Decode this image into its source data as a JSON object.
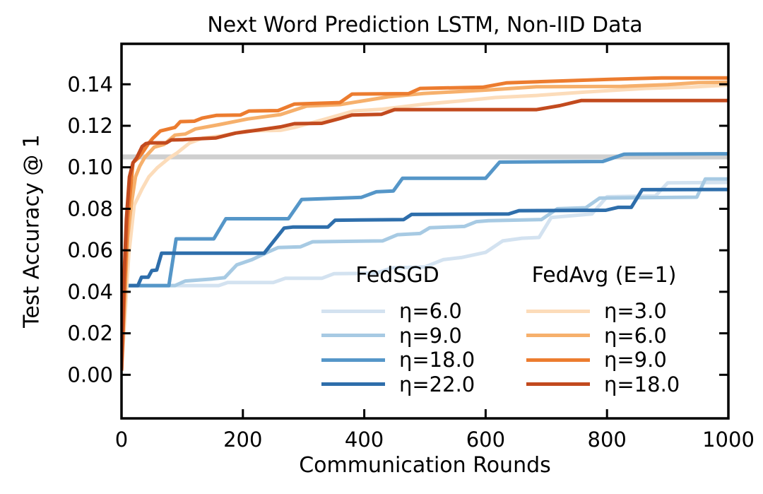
{
  "chart_data": {
    "type": "line",
    "title": "Next Word Prediction LSTM, Non-IID Data",
    "xlabel": "Communication Rounds",
    "ylabel": "Test Accuracy @ 1",
    "xlim": [
      0,
      1000
    ],
    "ylim": [
      -0.021,
      0.1595
    ],
    "grid": false,
    "xticks": [
      {
        "value": 0,
        "label": "0"
      },
      {
        "value": 200,
        "label": "200"
      },
      {
        "value": 400,
        "label": "400"
      },
      {
        "value": 600,
        "label": "600"
      },
      {
        "value": 800,
        "label": "800"
      },
      {
        "value": 1000,
        "label": "1000"
      }
    ],
    "yticks": [
      {
        "value": 0.0,
        "label": "0.00"
      },
      {
        "value": 0.02,
        "label": "0.02"
      },
      {
        "value": 0.04,
        "label": "0.04"
      },
      {
        "value": 0.06,
        "label": "0.06"
      },
      {
        "value": 0.08,
        "label": "0.08"
      },
      {
        "value": 0.1,
        "label": "0.10"
      },
      {
        "value": 0.12,
        "label": "0.12"
      },
      {
        "value": 0.14,
        "label": "0.14"
      }
    ],
    "target_line": {
      "value": 0.105,
      "color": "#cfcfcf"
    },
    "groups": [
      {
        "title": "FedSGD",
        "series": [
          {
            "label": "η=6.0",
            "color": "#d3e2f0",
            "points": [
              [
                0,
                0.043
              ],
              [
                160,
                0.043
              ],
              [
                175,
                0.0445
              ],
              [
                250,
                0.0445
              ],
              [
                270,
                0.0465
              ],
              [
                330,
                0.0465
              ],
              [
                350,
                0.0487
              ],
              [
                420,
                0.049
              ],
              [
                445,
                0.0515
              ],
              [
                500,
                0.052
              ],
              [
                530,
                0.0555
              ],
              [
                560,
                0.0565
              ],
              [
                600,
                0.059
              ],
              [
                628,
                0.0645
              ],
              [
                660,
                0.0658
              ],
              [
                688,
                0.0662
              ],
              [
                708,
                0.0758
              ],
              [
                775,
                0.0775
              ],
              [
                800,
                0.0858
              ],
              [
                880,
                0.0862
              ],
              [
                900,
                0.0925
              ],
              [
                1000,
                0.0927
              ]
            ]
          },
          {
            "label": "η=9.0",
            "color": "#a7cae3",
            "points": [
              [
                0,
                0.043
              ],
              [
                88,
                0.043
              ],
              [
                105,
                0.0452
              ],
              [
                150,
                0.0462
              ],
              [
                170,
                0.0468
              ],
              [
                190,
                0.053
              ],
              [
                215,
                0.0555
              ],
              [
                240,
                0.059
              ],
              [
                258,
                0.0613
              ],
              [
                295,
                0.0617
              ],
              [
                315,
                0.0641
              ],
              [
                430,
                0.0645
              ],
              [
                455,
                0.0675
              ],
              [
                492,
                0.0681
              ],
              [
                508,
                0.0709
              ],
              [
                565,
                0.0715
              ],
              [
                585,
                0.0738
              ],
              [
                605,
                0.0743
              ],
              [
                692,
                0.0748
              ],
              [
                718,
                0.08
              ],
              [
                765,
                0.0805
              ],
              [
                788,
                0.0852
              ],
              [
                948,
                0.0856
              ],
              [
                962,
                0.0944
              ],
              [
                1000,
                0.0944
              ]
            ]
          },
          {
            "label": "η=18.0",
            "color": "#5596c8",
            "points": [
              [
                0,
                0.043
              ],
              [
                78,
                0.043
              ],
              [
                90,
                0.0655
              ],
              [
                152,
                0.0655
              ],
              [
                172,
                0.0752
              ],
              [
                275,
                0.0752
              ],
              [
                297,
                0.0845
              ],
              [
                330,
                0.0848
              ],
              [
                395,
                0.0855
              ],
              [
                420,
                0.0882
              ],
              [
                448,
                0.0886
              ],
              [
                463,
                0.0947
              ],
              [
                600,
                0.0947
              ],
              [
                623,
                0.1025
              ],
              [
                793,
                0.1028
              ],
              [
                828,
                0.1063
              ],
              [
                1000,
                0.1065
              ]
            ]
          },
          {
            "label": "η=22.0",
            "color": "#2e6eab",
            "points": [
              [
                0,
                0.043
              ],
              [
                27,
                0.043
              ],
              [
                33,
                0.047
              ],
              [
                44,
                0.047
              ],
              [
                50,
                0.0502
              ],
              [
                58,
                0.0505
              ],
              [
                66,
                0.0586
              ],
              [
                235,
                0.0586
              ],
              [
                268,
                0.0707
              ],
              [
                282,
                0.0712
              ],
              [
                340,
                0.0712
              ],
              [
                352,
                0.0745
              ],
              [
                465,
                0.0748
              ],
              [
                478,
                0.0773
              ],
              [
                638,
                0.0775
              ],
              [
                655,
                0.0791
              ],
              [
                798,
                0.0793
              ],
              [
                818,
                0.0807
              ],
              [
                840,
                0.0807
              ],
              [
                858,
                0.0892
              ],
              [
                1000,
                0.0893
              ]
            ]
          }
        ]
      },
      {
        "title": "FedAvg (E=1)",
        "series": [
          {
            "label": "η=3.0",
            "color": "#fcdcba",
            "points": [
              [
                0,
                0.002
              ],
              [
                6,
                0.03
              ],
              [
                12,
                0.058
              ],
              [
                21,
                0.0818
              ],
              [
                34,
                0.0896
              ],
              [
                45,
                0.0954
              ],
              [
                59,
                0.0998
              ],
              [
                79,
                0.1046
              ],
              [
                91,
                0.1068
              ],
              [
                112,
                0.1117
              ],
              [
                134,
                0.1141
              ],
              [
                165,
                0.1152
              ],
              [
                206,
                0.1175
              ],
              [
                262,
                0.1178
              ],
              [
                285,
                0.1192
              ],
              [
                335,
                0.1232
              ],
              [
                382,
                0.1271
              ],
              [
                430,
                0.128
              ],
              [
                500,
                0.1305
              ],
              [
                560,
                0.132
              ],
              [
                616,
                0.1336
              ],
              [
                684,
                0.1346
              ],
              [
                766,
                0.1363
              ],
              [
                863,
                0.138
              ],
              [
                940,
                0.1387
              ],
              [
                1000,
                0.1396
              ]
            ]
          },
          {
            "label": "η=6.0",
            "color": "#f6b06c",
            "points": [
              [
                0,
                0.002
              ],
              [
                5,
                0.035
              ],
              [
                10,
                0.0655
              ],
              [
                16,
                0.0818
              ],
              [
                23,
                0.0954
              ],
              [
                30,
                0.1005
              ],
              [
                38,
                0.1046
              ],
              [
                54,
                0.1097
              ],
              [
                70,
                0.111
              ],
              [
                88,
                0.1155
              ],
              [
                105,
                0.116
              ],
              [
                122,
                0.1185
              ],
              [
                160,
                0.1205
              ],
              [
                208,
                0.1233
              ],
              [
                262,
                0.1254
              ],
              [
                305,
                0.1295
              ],
              [
                360,
                0.1302
              ],
              [
                440,
                0.134
              ],
              [
                498,
                0.1356
              ],
              [
                600,
                0.1372
              ],
              [
                684,
                0.1388
              ],
              [
                824,
                0.139
              ],
              [
                900,
                0.1398
              ],
              [
                950,
                0.1408
              ],
              [
                1000,
                0.141
              ]
            ]
          },
          {
            "label": "η=9.0",
            "color": "#ec7c2f",
            "points": [
              [
                0,
                0.002
              ],
              [
                5,
                0.04
              ],
              [
                10,
                0.075
              ],
              [
                19,
                0.1022
              ],
              [
                28,
                0.1046
              ],
              [
                35,
                0.1073
              ],
              [
                45,
                0.1117
              ],
              [
                52,
                0.1141
              ],
              [
                64,
                0.1175
              ],
              [
                88,
                0.1192
              ],
              [
                97,
                0.122
              ],
              [
                120,
                0.1222
              ],
              [
                133,
                0.1237
              ],
              [
                156,
                0.125
              ],
              [
                196,
                0.1252
              ],
              [
                210,
                0.1271
              ],
              [
                258,
                0.1273
              ],
              [
                285,
                0.1305
              ],
              [
                360,
                0.1312
              ],
              [
                380,
                0.1353
              ],
              [
                473,
                0.1355
              ],
              [
                492,
                0.138
              ],
              [
                595,
                0.1386
              ],
              [
                635,
                0.1407
              ],
              [
                804,
                0.1424
              ],
              [
                890,
                0.1431
              ],
              [
                1000,
                0.1431
              ]
            ]
          },
          {
            "label": "η=18.0",
            "color": "#c24a1e",
            "points": [
              [
                0,
                0.002
              ],
              [
                4,
                0.045
              ],
              [
                8,
                0.075
              ],
              [
                13,
                0.0954
              ],
              [
                19,
                0.1022
              ],
              [
                25,
                0.1046
              ],
              [
                34,
                0.11
              ],
              [
                40,
                0.1114
              ],
              [
                47,
                0.1118
              ],
              [
                74,
                0.1118
              ],
              [
                82,
                0.1132
              ],
              [
                100,
                0.1133
              ],
              [
                122,
                0.1137
              ],
              [
                155,
                0.1141
              ],
              [
                188,
                0.1165
              ],
              [
                226,
                0.118
              ],
              [
                262,
                0.1195
              ],
              [
                285,
                0.121
              ],
              [
                330,
                0.1212
              ],
              [
                360,
                0.1235
              ],
              [
                380,
                0.1252
              ],
              [
                428,
                0.1255
              ],
              [
                450,
                0.1278
              ],
              [
                684,
                0.1278
              ],
              [
                702,
                0.1287
              ],
              [
                722,
                0.1297
              ],
              [
                758,
                0.1322
              ],
              [
                1000,
                0.1322
              ]
            ]
          }
        ]
      }
    ]
  }
}
